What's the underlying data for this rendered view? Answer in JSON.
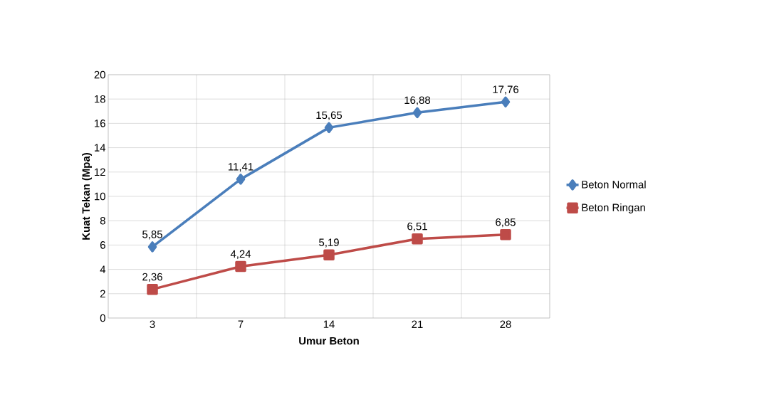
{
  "chart_data": {
    "type": "line",
    "xlabel": "Umur Beton",
    "ylabel": "Kuat Tekan (Mpa)",
    "categories": [
      "3",
      "7",
      "14",
      "21",
      "28"
    ],
    "series": [
      {
        "name": "Beton Normal",
        "color": "#4a7ebb",
        "marker": "diamond",
        "values": [
          5.85,
          11.41,
          15.65,
          16.88,
          17.76
        ],
        "value_labels": [
          "5,85",
          "11,41",
          "15,65",
          "16,88",
          "17,76"
        ]
      },
      {
        "name": "Beton Ringan",
        "color": "#be4b48",
        "marker": "square",
        "values": [
          2.36,
          4.24,
          5.19,
          6.51,
          6.85
        ],
        "value_labels": [
          "2,36",
          "4,24",
          "5,19",
          "6,51",
          "6,85"
        ]
      }
    ],
    "ylim": [
      0,
      20
    ],
    "yticks": [
      0,
      2,
      4,
      6,
      8,
      10,
      12,
      14,
      16,
      18,
      20
    ],
    "grid": true,
    "legend": "right",
    "line_style": "solid"
  }
}
